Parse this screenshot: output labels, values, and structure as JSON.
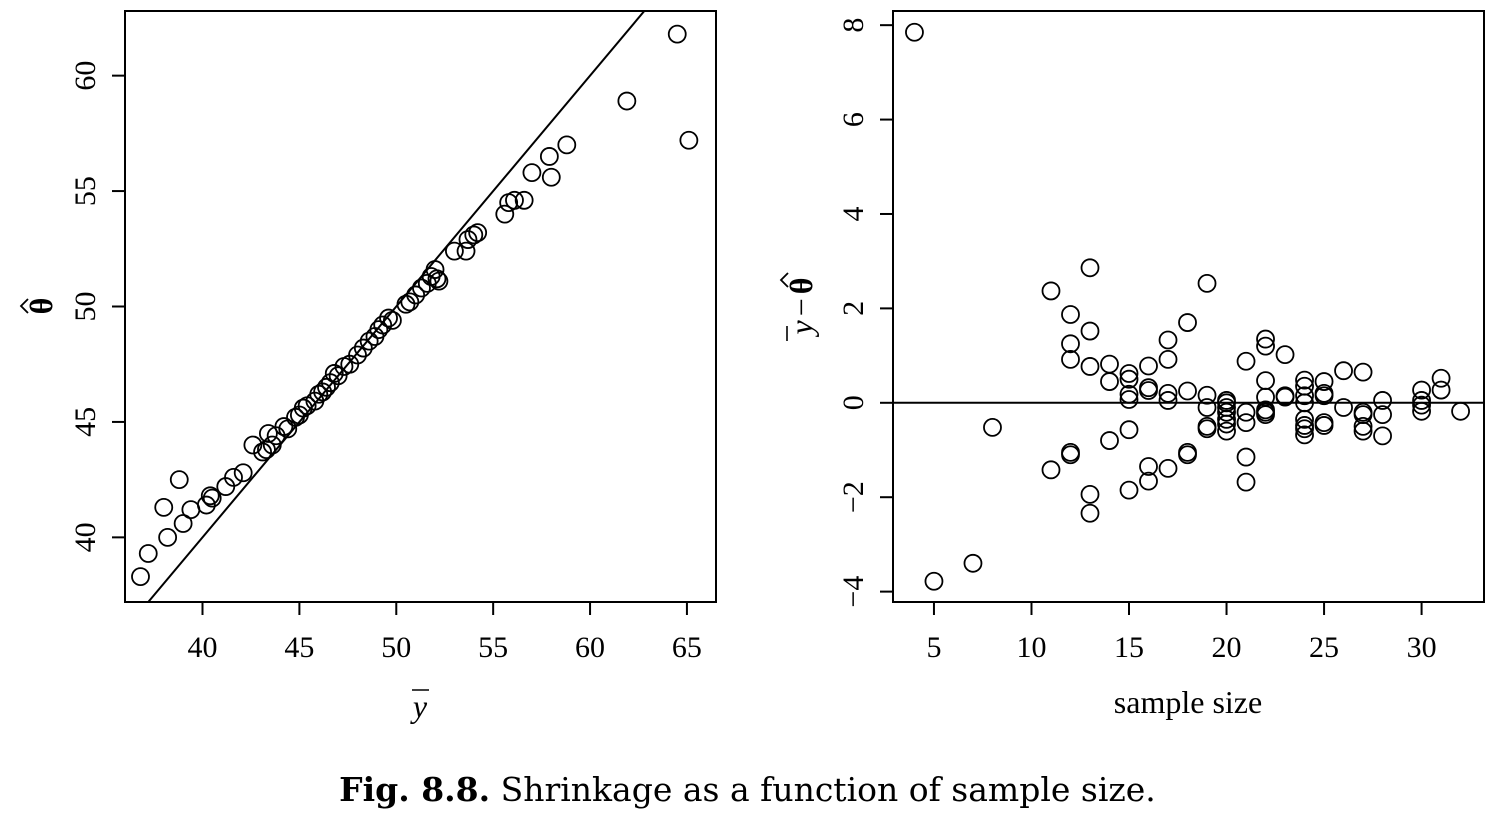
{
  "caption": {
    "label": "Fig. 8.8.",
    "text": " Shrinkage as a function of sample size."
  },
  "chart_data": [
    {
      "type": "scatter",
      "xlabel": "y",
      "xlabel_overline": true,
      "ylabel": "θ",
      "ylabel_hat": true,
      "xlim": [
        36,
        66.5
      ],
      "ylim": [
        37.2,
        62.8
      ],
      "xticks": [
        40,
        45,
        50,
        55,
        60,
        65
      ],
      "yticks": [
        40,
        45,
        50,
        55,
        60
      ],
      "reference_line": {
        "type": "identity",
        "slope": 1,
        "intercept": 0
      },
      "grid": false,
      "points": [
        [
          36.8,
          38.3
        ],
        [
          37.2,
          39.3
        ],
        [
          38.0,
          41.3
        ],
        [
          38.2,
          40.0
        ],
        [
          38.8,
          42.5
        ],
        [
          39.0,
          40.6
        ],
        [
          39.4,
          41.2
        ],
        [
          40.2,
          41.4
        ],
        [
          40.4,
          41.8
        ],
        [
          40.5,
          41.7
        ],
        [
          41.2,
          42.2
        ],
        [
          41.6,
          42.6
        ],
        [
          42.1,
          42.8
        ],
        [
          42.6,
          44.0
        ],
        [
          43.1,
          43.7
        ],
        [
          43.3,
          43.8
        ],
        [
          43.4,
          44.5
        ],
        [
          43.6,
          44.0
        ],
        [
          43.8,
          44.4
        ],
        [
          44.2,
          44.8
        ],
        [
          44.4,
          44.7
        ],
        [
          44.8,
          45.2
        ],
        [
          45.0,
          45.3
        ],
        [
          45.2,
          45.6
        ],
        [
          45.4,
          45.7
        ],
        [
          45.8,
          45.9
        ],
        [
          46.0,
          46.2
        ],
        [
          46.2,
          46.3
        ],
        [
          46.4,
          46.5
        ],
        [
          46.6,
          46.7
        ],
        [
          46.8,
          47.1
        ],
        [
          47.0,
          47.0
        ],
        [
          47.3,
          47.4
        ],
        [
          47.6,
          47.5
        ],
        [
          48.0,
          47.9
        ],
        [
          48.3,
          48.2
        ],
        [
          48.6,
          48.5
        ],
        [
          48.9,
          48.7
        ],
        [
          49.1,
          49.0
        ],
        [
          49.3,
          49.2
        ],
        [
          49.6,
          49.5
        ],
        [
          49.8,
          49.4
        ],
        [
          50.5,
          50.1
        ],
        [
          50.7,
          50.2
        ],
        [
          51.0,
          50.5
        ],
        [
          51.3,
          50.8
        ],
        [
          51.6,
          51.0
        ],
        [
          51.8,
          51.3
        ],
        [
          52.0,
          51.6
        ],
        [
          52.1,
          51.2
        ],
        [
          52.2,
          51.1
        ],
        [
          53.0,
          52.4
        ],
        [
          53.6,
          52.4
        ],
        [
          53.7,
          52.9
        ],
        [
          54.0,
          53.1
        ],
        [
          54.2,
          53.2
        ],
        [
          55.6,
          54.0
        ],
        [
          55.8,
          54.5
        ],
        [
          56.1,
          54.6
        ],
        [
          56.6,
          54.6
        ],
        [
          57.0,
          55.8
        ],
        [
          57.9,
          56.5
        ],
        [
          58.0,
          55.6
        ],
        [
          58.8,
          57.0
        ],
        [
          61.9,
          58.9
        ],
        [
          64.5,
          61.8
        ],
        [
          65.1,
          57.2
        ]
      ]
    },
    {
      "type": "scatter",
      "xlabel": "sample size",
      "ylabel_parts": [
        "y",
        "−",
        "θ"
      ],
      "ylabel_note": "overlined y minus hatted theta",
      "xlim": [
        2.9,
        33.2
      ],
      "ylim": [
        -4.22,
        8.3
      ],
      "xticks": [
        5,
        10,
        15,
        20,
        25,
        30
      ],
      "yticks": [
        -4,
        -2,
        0,
        2,
        4,
        6,
        8
      ],
      "reference_line": {
        "type": "horizontal",
        "y": 0
      },
      "grid": false,
      "points": [
        [
          4,
          7.85
        ],
        [
          5,
          -3.78
        ],
        [
          7,
          -3.4
        ],
        [
          8,
          -0.52
        ],
        [
          11,
          2.37
        ],
        [
          11,
          -1.42
        ],
        [
          12,
          1.87
        ],
        [
          12,
          1.25
        ],
        [
          12,
          0.92
        ],
        [
          12,
          -1.05
        ],
        [
          12,
          -1.1
        ],
        [
          13,
          2.86
        ],
        [
          13,
          1.52
        ],
        [
          13,
          0.77
        ],
        [
          13,
          -1.94
        ],
        [
          13,
          -2.34
        ],
        [
          14,
          0.82
        ],
        [
          14,
          0.45
        ],
        [
          14,
          -0.8
        ],
        [
          15,
          0.62
        ],
        [
          15,
          0.5
        ],
        [
          15,
          0.18
        ],
        [
          15,
          0.07
        ],
        [
          15,
          -0.57
        ],
        [
          15,
          -1.85
        ],
        [
          16,
          0.78
        ],
        [
          16,
          0.32
        ],
        [
          16,
          0.26
        ],
        [
          16,
          -1.35
        ],
        [
          16,
          -1.66
        ],
        [
          17,
          1.33
        ],
        [
          17,
          0.92
        ],
        [
          17,
          0.2
        ],
        [
          17,
          0.05
        ],
        [
          17,
          -1.39
        ],
        [
          18,
          1.7
        ],
        [
          18,
          0.25
        ],
        [
          18,
          -1.05
        ],
        [
          18,
          -1.1
        ],
        [
          19,
          2.53
        ],
        [
          19,
          0.16
        ],
        [
          19,
          -0.1
        ],
        [
          19,
          -0.5
        ],
        [
          19,
          -0.55
        ],
        [
          20,
          0.05
        ],
        [
          20,
          0.0
        ],
        [
          20,
          -0.1
        ],
        [
          20,
          -0.2
        ],
        [
          20,
          -0.35
        ],
        [
          20,
          -0.45
        ],
        [
          20,
          -0.6
        ],
        [
          21,
          0.88
        ],
        [
          21,
          -0.2
        ],
        [
          21,
          -0.42
        ],
        [
          21,
          -1.15
        ],
        [
          21,
          -1.68
        ],
        [
          22,
          1.35
        ],
        [
          22,
          1.2
        ],
        [
          22,
          0.47
        ],
        [
          22,
          0.12
        ],
        [
          22,
          -0.15
        ],
        [
          22,
          -0.2
        ],
        [
          22,
          -0.25
        ],
        [
          23,
          1.02
        ],
        [
          23,
          0.15
        ],
        [
          23,
          0.12
        ],
        [
          24,
          0.48
        ],
        [
          24,
          0.35
        ],
        [
          24,
          0.15
        ],
        [
          24,
          0.0
        ],
        [
          24,
          -0.35
        ],
        [
          24,
          -0.48
        ],
        [
          24,
          -0.55
        ],
        [
          24,
          -0.68
        ],
        [
          25,
          0.45
        ],
        [
          25,
          0.2
        ],
        [
          25,
          0.15
        ],
        [
          25,
          -0.42
        ],
        [
          25,
          -0.48
        ],
        [
          26,
          0.68
        ],
        [
          26,
          -0.1
        ],
        [
          27,
          0.65
        ],
        [
          27,
          -0.2
        ],
        [
          27,
          -0.25
        ],
        [
          27,
          -0.5
        ],
        [
          27,
          -0.6
        ],
        [
          28,
          0.05
        ],
        [
          28,
          -0.25
        ],
        [
          28,
          -0.7
        ],
        [
          30,
          0.27
        ],
        [
          30,
          0.05
        ],
        [
          30,
          -0.05
        ],
        [
          30,
          -0.18
        ],
        [
          31,
          0.52
        ],
        [
          31,
          0.27
        ],
        [
          32,
          -0.18
        ]
      ]
    }
  ]
}
